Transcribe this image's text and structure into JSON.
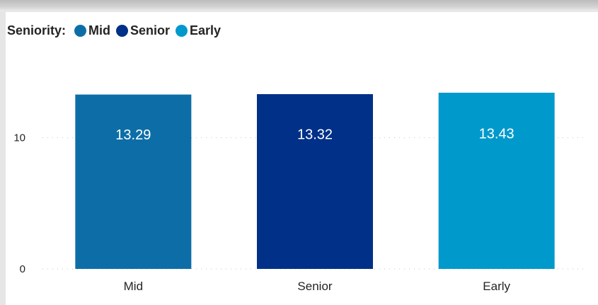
{
  "legend": {
    "title": "Seniority:",
    "items": [
      {
        "label": "Mid",
        "color": "#0D6EA7"
      },
      {
        "label": "Senior",
        "color": "#003087"
      },
      {
        "label": "Early",
        "color": "#0099CC"
      }
    ]
  },
  "chart_data": {
    "type": "bar",
    "categories": [
      "Mid",
      "Senior",
      "Early"
    ],
    "values": [
      13.29,
      13.32,
      13.43
    ],
    "data_labels": [
      "13.29",
      "13.32",
      "13.43"
    ],
    "colors": [
      "#0D6EA7",
      "#003087",
      "#0099CC"
    ],
    "y_ticks": [
      0,
      10
    ],
    "ylim": [
      0,
      13.43
    ],
    "grid": "dotted horizontal",
    "legend_position": "top-left",
    "title": "",
    "xlabel": "",
    "ylabel": ""
  }
}
